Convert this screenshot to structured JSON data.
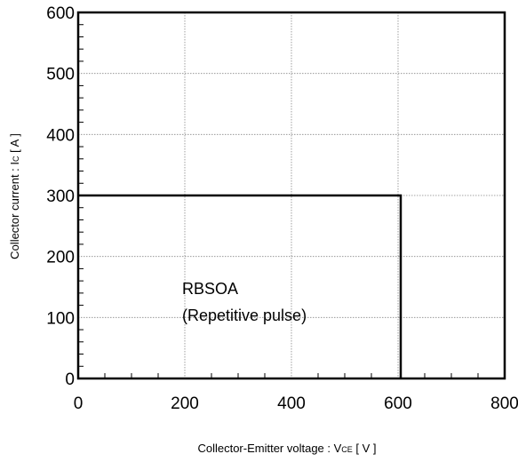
{
  "chart_data": {
    "type": "line",
    "xlabel": {
      "prefix": "Collector-Emitter voltage  :  V",
      "sub": "CE",
      "suffix": " [ V ]"
    },
    "ylabel": {
      "prefix": "Collector current : I",
      "sub": "C",
      "suffix": " [ A ]"
    },
    "xlim": [
      0,
      800
    ],
    "ylim": [
      0,
      600
    ],
    "x_ticks": [
      0,
      200,
      400,
      600,
      800
    ],
    "y_ticks": [
      0,
      100,
      200,
      300,
      400,
      500,
      600
    ],
    "x_tick_labels": [
      "0",
      "200",
      "400",
      "600",
      "800"
    ],
    "y_tick_labels": [
      "0",
      "100",
      "200",
      "300",
      "400",
      "500",
      "600"
    ],
    "grid": true,
    "series": [
      {
        "points": [
          [
            0,
            300
          ],
          [
            605,
            300
          ],
          [
            605,
            0
          ]
        ],
        "color": "#000000"
      }
    ],
    "annotations": [
      "RBSOA",
      "(Repetitive pulse)"
    ]
  }
}
